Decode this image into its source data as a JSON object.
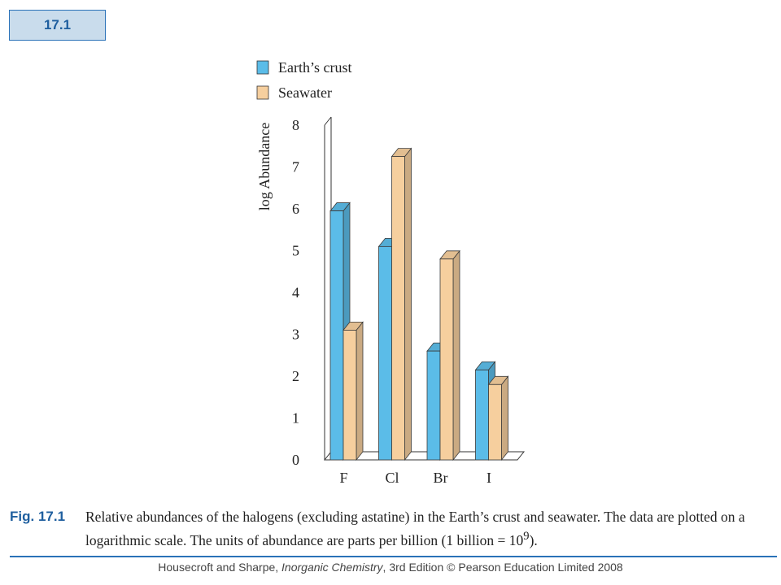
{
  "figure_label": "17.1",
  "caption": {
    "label": "Fig. 17.1",
    "text_before_exponent": "Relative abundances of the halogens (excluding astatine) in the Earth’s crust and seawater. The data are plotted on a logarithmic scale. The units of abundance are parts per billion (1 billion = 10",
    "exponent": "9",
    "text_after_exponent": ")."
  },
  "footer": {
    "authors": "Housecroft and Sharpe, ",
    "book_title": "Inorganic Chemistry",
    "rest": ", 3rd Edition © Pearson Education Limited 2008"
  },
  "chart_data": {
    "type": "bar",
    "ylabel": "log Abundance",
    "xlabel": "",
    "ylim": [
      0,
      8
    ],
    "yticks": [
      "0",
      "1",
      "2",
      "3",
      "4",
      "5",
      "6",
      "7",
      "8"
    ],
    "categories": [
      "F",
      "Cl",
      "Br",
      "I"
    ],
    "series": [
      {
        "name": "Earth’s crust",
        "color": "#5bbce8",
        "values": [
          5.95,
          5.1,
          2.6,
          2.15
        ]
      },
      {
        "name": "Seawater",
        "color": "#f6cf9e",
        "values": [
          3.1,
          7.25,
          4.8,
          1.8
        ]
      }
    ],
    "legend_position": "top-left",
    "style": "3d-bars"
  }
}
